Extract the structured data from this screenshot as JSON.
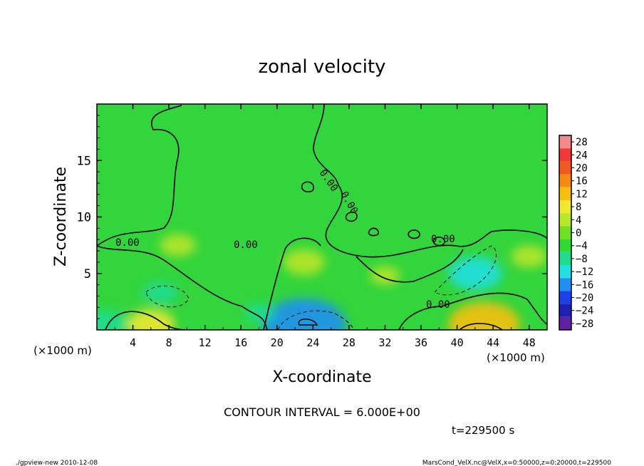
{
  "chart_data": {
    "type": "heatmap",
    "title": "zonal velocity",
    "xlabel": "X-coordinate",
    "ylabel": "Z-coordinate",
    "x_unit_label": "(×1000 m)",
    "y_unit_label": "(×1000 m)",
    "xlim": [
      0,
      50
    ],
    "ylim": [
      0,
      20
    ],
    "xticks": [
      4,
      8,
      12,
      16,
      20,
      24,
      28,
      32,
      36,
      40,
      44,
      48
    ],
    "yticks": [
      5,
      10,
      15
    ],
    "colorbar": {
      "levels": [
        28,
        24,
        20,
        16,
        12,
        8,
        4,
        0,
        -4,
        -8,
        -12,
        -16,
        -20,
        -24,
        -28
      ],
      "labels": [
        "28",
        "24",
        "20",
        "16",
        "12",
        "8",
        "4",
        "0",
        "−4",
        "−8",
        "−12",
        "−16",
        "−20",
        "−24",
        "−28"
      ],
      "colors": [
        "#f08a8a",
        "#f03a3a",
        "#f05a1e",
        "#f58a10",
        "#f5c010",
        "#f0e830",
        "#b8e628",
        "#6fe028",
        "#30d838",
        "#20dc90",
        "#20e0e0",
        "#2090f0",
        "#1e40e8",
        "#2020b0",
        "#6020a0"
      ]
    },
    "contour_interval_text": "CONTOUR INTERVAL = 6.000E+00",
    "contour_labels": [
      "0.00",
      "0.00",
      "0.00",
      "0.00",
      "0.00",
      "0.00"
    ],
    "time_text": "t=229500 s",
    "features": [
      {
        "x": 23,
        "z": 6.0,
        "value": 7,
        "kind": "max"
      },
      {
        "x": 9,
        "z": 7.5,
        "value": 6,
        "kind": "max"
      },
      {
        "x": 48,
        "z": 6.5,
        "value": 6,
        "kind": "max"
      },
      {
        "x": 32,
        "z": 4.8,
        "value": 5,
        "kind": "max"
      },
      {
        "x": 6,
        "z": 0.5,
        "value": 8,
        "kind": "max"
      },
      {
        "x": 43,
        "z": 0.5,
        "value": 12,
        "kind": "max"
      },
      {
        "x": 42,
        "z": 5.0,
        "value": -9,
        "kind": "min"
      },
      {
        "x": 7,
        "z": 3.3,
        "value": -6,
        "kind": "min"
      },
      {
        "x": 23,
        "z": 0.5,
        "value": -14,
        "kind": "min"
      },
      {
        "x": 1,
        "z": 0.6,
        "value": -7,
        "kind": "min"
      },
      {
        "x": 18,
        "z": 1.5,
        "value": -5,
        "kind": "min"
      }
    ]
  },
  "footer": {
    "left": "./gpview-new  2010-12-08",
    "right": "MarsCond_VelX.nc@VelX,x=0:50000,z=0:20000,t=229500"
  }
}
